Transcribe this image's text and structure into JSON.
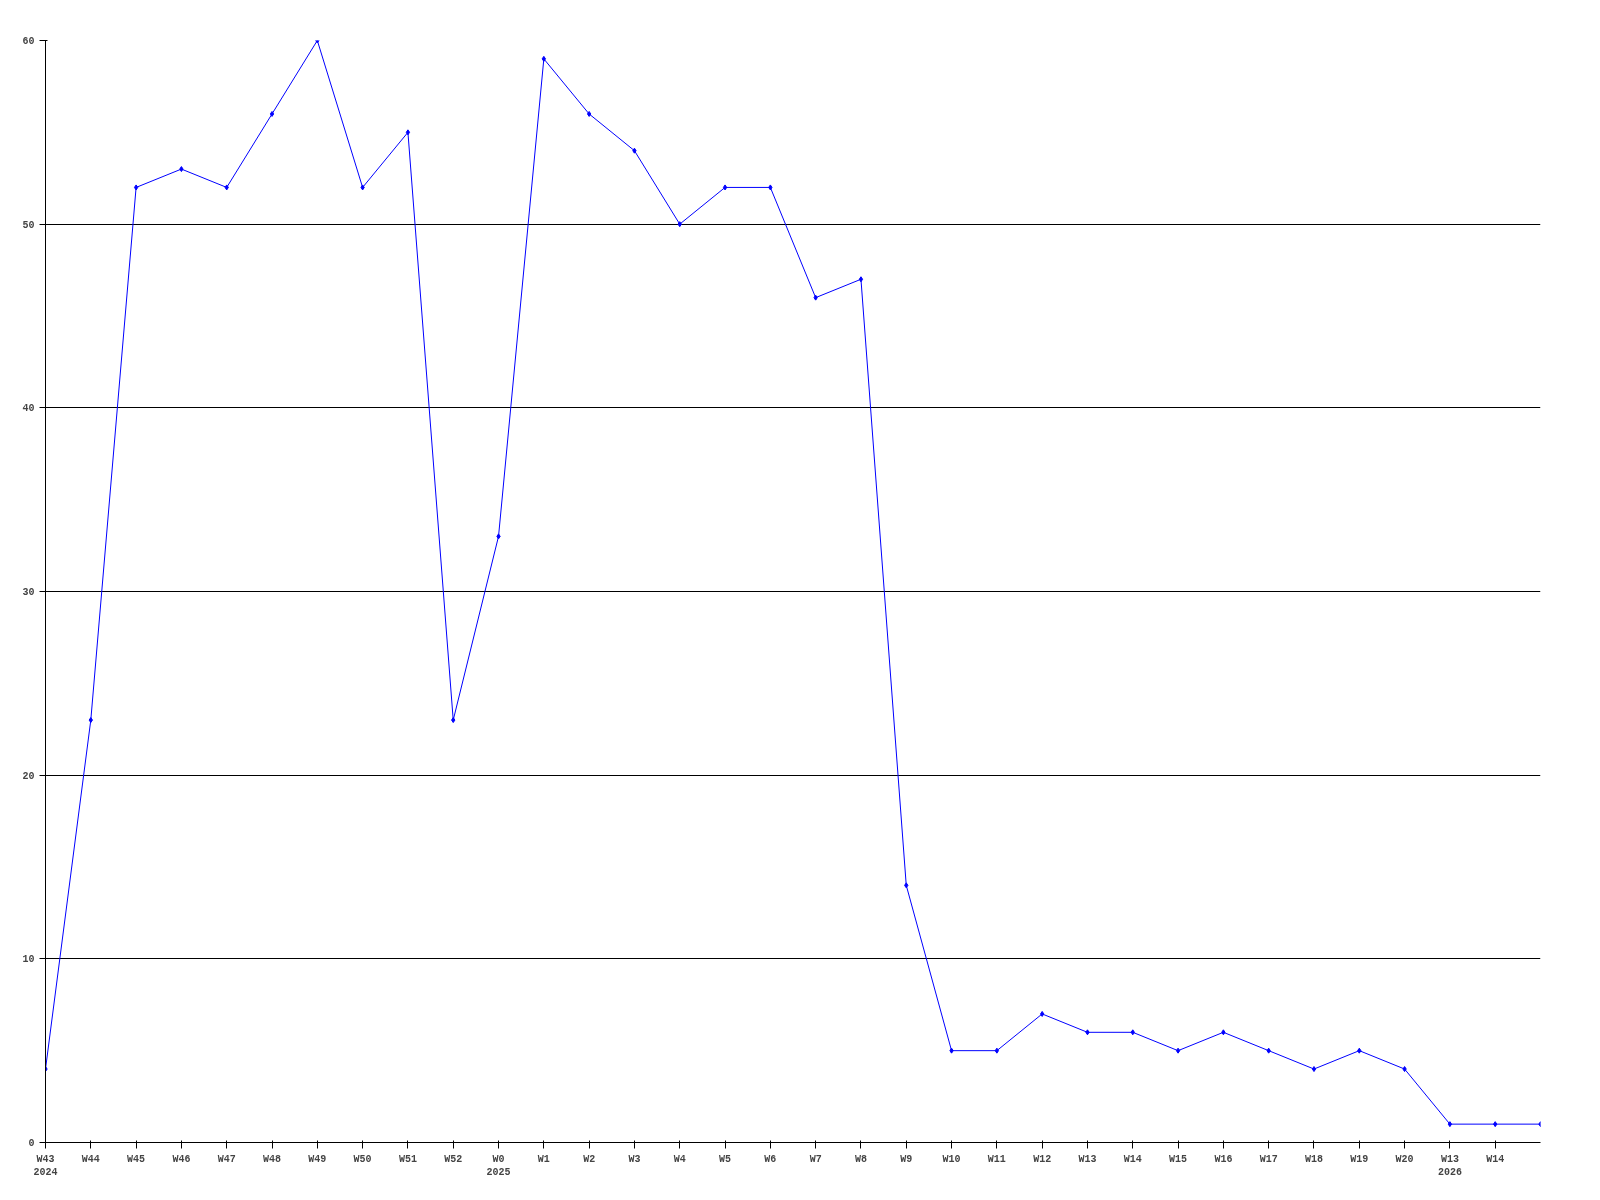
{
  "chart_data": {
    "type": "line",
    "categories": [
      "W43\n2024",
      "W44",
      "W45",
      "W46",
      "W47",
      "W48",
      "W49",
      "W50",
      "W51",
      "W52",
      "W0\n2025",
      "W1",
      "W2",
      "W3",
      "W4",
      "W5",
      "W6",
      "W7",
      "W8",
      "W9",
      "W10",
      "W11",
      "W12",
      "W13",
      "W14",
      "W15",
      "W16",
      "W17",
      "W18",
      "W19",
      "W20",
      "W13\n2026",
      "W14",
      null
    ],
    "series": [
      {
        "color": "#0000ff",
        "values": [
          4,
          23,
          52,
          53,
          52,
          56,
          60,
          52,
          55,
          23,
          33,
          59,
          56,
          54,
          50,
          52,
          52,
          46,
          47,
          14,
          5,
          5,
          7,
          6,
          6,
          5,
          6,
          5,
          4,
          5,
          4,
          1,
          1,
          1
        ]
      }
    ],
    "ylim": [
      0,
      60
    ],
    "yticks": [
      0,
      10,
      20,
      30,
      40,
      50,
      60
    ],
    "grid": "y",
    "marker": "diamond",
    "line_style": "solid"
  }
}
